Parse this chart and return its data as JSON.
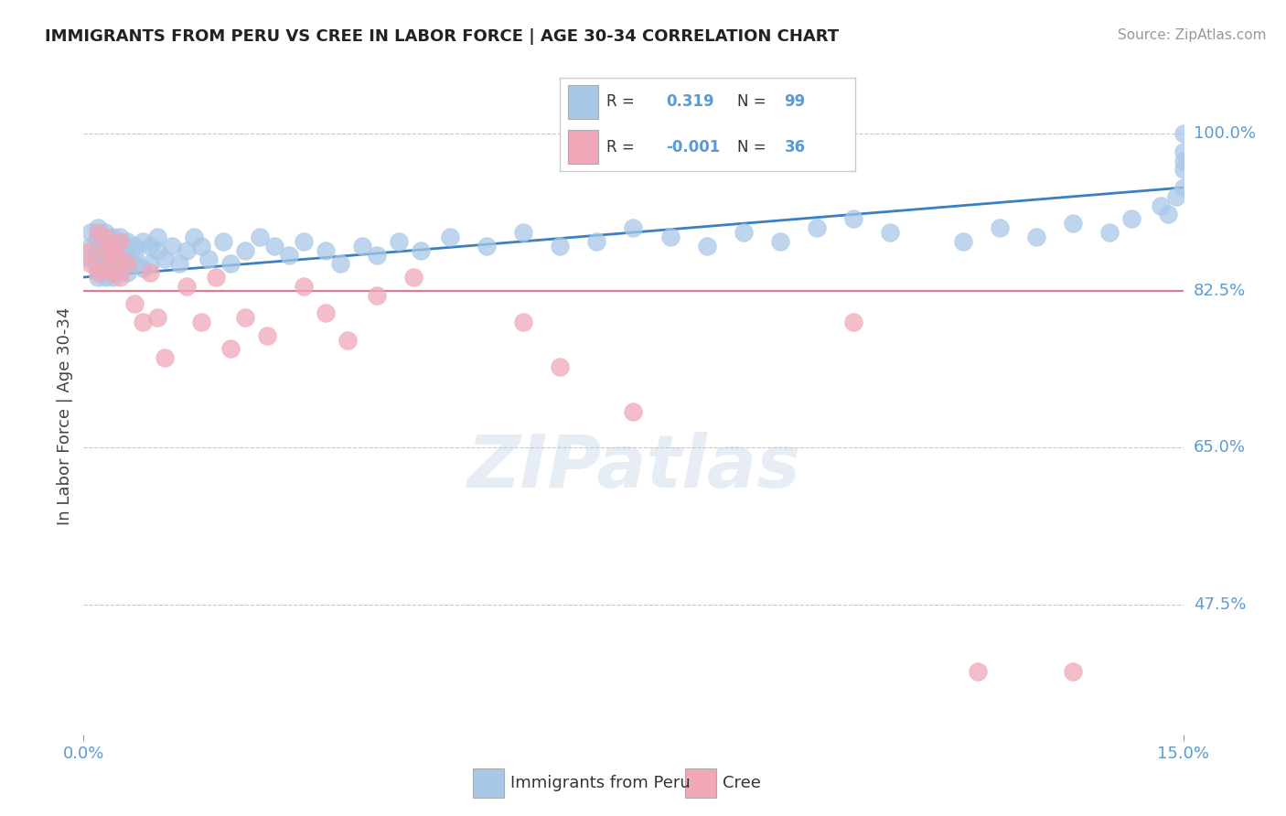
{
  "title": "IMMIGRANTS FROM PERU VS CREE IN LABOR FORCE | AGE 30-34 CORRELATION CHART",
  "ylabel": "In Labor Force | Age 30-34",
  "source": "Source: ZipAtlas.com",
  "xmin": 0.0,
  "xmax": 0.15,
  "ymin": 0.33,
  "ymax": 1.04,
  "ytick_vals": [
    0.475,
    0.65,
    0.825,
    1.0
  ],
  "ytick_labels": [
    "47.5%",
    "65.0%",
    "82.5%",
    "100.0%"
  ],
  "xtick_vals": [
    0.0,
    0.15
  ],
  "xtick_labels": [
    "0.0%",
    "15.0%"
  ],
  "blue_color": "#a8c8e8",
  "pink_color": "#f0a8b8",
  "blue_line_color": "#3a7fc1",
  "pink_line_color": "#e07890",
  "grid_color": "#c8c8c8",
  "label_color": "#5b9bd5",
  "r_blue": "0.319",
  "n_blue": "99",
  "r_pink": "-0.001",
  "n_pink": "36",
  "legend_blue": "Immigrants from Peru",
  "legend_pink": "Cree",
  "blue_trend_x": [
    0.0,
    0.15
  ],
  "blue_trend_y": [
    0.84,
    0.94
  ],
  "pink_trend_y": 0.825,
  "watermark": "ZIPatlas",
  "blue_scatter_x": [
    0.001,
    0.001,
    0.001,
    0.002,
    0.002,
    0.002,
    0.002,
    0.002,
    0.002,
    0.002,
    0.003,
    0.003,
    0.003,
    0.003,
    0.003,
    0.003,
    0.003,
    0.003,
    0.003,
    0.003,
    0.003,
    0.003,
    0.004,
    0.004,
    0.004,
    0.004,
    0.004,
    0.004,
    0.004,
    0.004,
    0.004,
    0.004,
    0.005,
    0.005,
    0.005,
    0.005,
    0.005,
    0.005,
    0.005,
    0.006,
    0.006,
    0.006,
    0.006,
    0.007,
    0.007,
    0.007,
    0.008,
    0.008,
    0.009,
    0.009,
    0.01,
    0.01,
    0.011,
    0.012,
    0.013,
    0.014,
    0.015,
    0.016,
    0.017,
    0.019,
    0.02,
    0.022,
    0.024,
    0.026,
    0.028,
    0.03,
    0.033,
    0.035,
    0.038,
    0.04,
    0.043,
    0.046,
    0.05,
    0.055,
    0.06,
    0.065,
    0.07,
    0.075,
    0.08,
    0.085,
    0.09,
    0.095,
    0.1,
    0.105,
    0.11,
    0.12,
    0.125,
    0.13,
    0.135,
    0.14,
    0.143,
    0.147,
    0.148,
    0.149,
    0.15,
    0.15,
    0.15,
    0.15,
    0.15
  ],
  "blue_scatter_y": [
    0.875,
    0.86,
    0.89,
    0.855,
    0.875,
    0.895,
    0.84,
    0.865,
    0.885,
    0.85,
    0.87,
    0.89,
    0.855,
    0.875,
    0.845,
    0.865,
    0.885,
    0.85,
    0.87,
    0.84,
    0.86,
    0.88,
    0.855,
    0.875,
    0.845,
    0.865,
    0.885,
    0.85,
    0.87,
    0.84,
    0.86,
    0.88,
    0.875,
    0.855,
    0.845,
    0.865,
    0.885,
    0.85,
    0.87,
    0.86,
    0.88,
    0.845,
    0.87,
    0.875,
    0.855,
    0.865,
    0.88,
    0.85,
    0.875,
    0.855,
    0.87,
    0.885,
    0.86,
    0.875,
    0.855,
    0.87,
    0.885,
    0.875,
    0.86,
    0.88,
    0.855,
    0.87,
    0.885,
    0.875,
    0.865,
    0.88,
    0.87,
    0.855,
    0.875,
    0.865,
    0.88,
    0.87,
    0.885,
    0.875,
    0.89,
    0.875,
    0.88,
    0.895,
    0.885,
    0.875,
    0.89,
    0.88,
    0.895,
    0.905,
    0.89,
    0.88,
    0.895,
    0.885,
    0.9,
    0.89,
    0.905,
    0.92,
    0.91,
    0.93,
    0.94,
    0.96,
    0.97,
    0.98,
    1.0
  ],
  "pink_scatter_x": [
    0.001,
    0.001,
    0.002,
    0.002,
    0.003,
    0.003,
    0.003,
    0.004,
    0.004,
    0.004,
    0.005,
    0.005,
    0.005,
    0.006,
    0.007,
    0.008,
    0.009,
    0.01,
    0.011,
    0.014,
    0.016,
    0.018,
    0.02,
    0.022,
    0.025,
    0.03,
    0.033,
    0.036,
    0.04,
    0.045,
    0.06,
    0.065,
    0.075,
    0.105,
    0.122,
    0.135
  ],
  "pink_scatter_y": [
    0.87,
    0.855,
    0.89,
    0.845,
    0.87,
    0.85,
    0.885,
    0.865,
    0.845,
    0.875,
    0.86,
    0.84,
    0.88,
    0.855,
    0.81,
    0.79,
    0.845,
    0.795,
    0.75,
    0.83,
    0.79,
    0.84,
    0.76,
    0.795,
    0.775,
    0.83,
    0.8,
    0.77,
    0.82,
    0.84,
    0.79,
    0.74,
    0.69,
    0.79,
    0.4,
    0.4
  ]
}
